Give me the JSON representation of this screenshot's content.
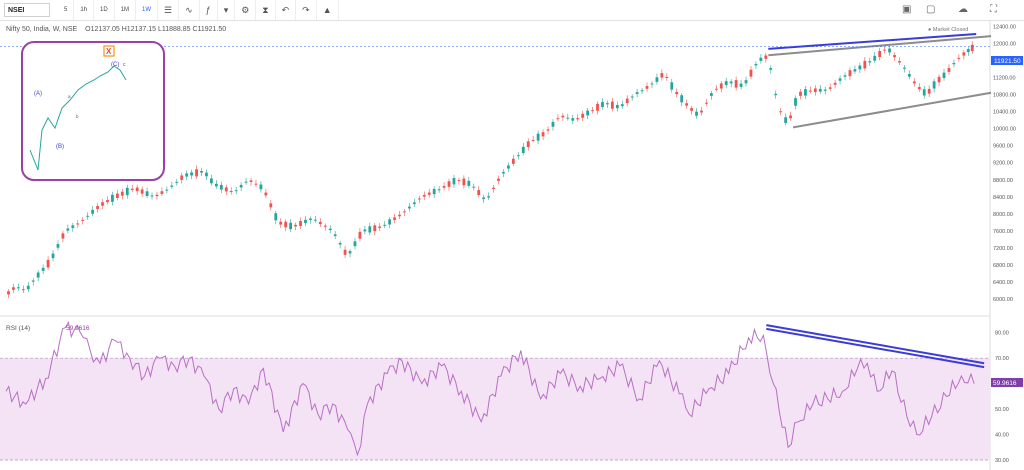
{
  "toolbar": {
    "symbol": "NSEI",
    "intervals": [
      "5",
      "1h",
      "1D",
      "1M",
      "1W"
    ],
    "active_interval": "1W",
    "icons": [
      "bar-style-icon",
      "compare-icon",
      "indicators-icon",
      "dropdown-icon",
      "settings-icon",
      "alert-icon",
      "undo-icon",
      "redo-icon",
      "publish-icon"
    ],
    "right_icons": [
      "camera-icon",
      "layout-icon",
      "cloud-icon",
      "fullscreen-icon"
    ]
  },
  "legend": {
    "title": "Nifty 50, India, W, NSE",
    "ohlc": "O12137.05  H12137.15  L11888.85  C11921.50"
  },
  "market_status": "Market Closed",
  "price_badge": "11921.50",
  "rsi_badge": "59.9616",
  "rsi_legend": {
    "label": "RSI (14)",
    "value": "59.9616"
  },
  "inset_labels": [
    "X",
    "(C)",
    "c",
    "(A)",
    "(B)",
    "a",
    "b"
  ],
  "colors": {
    "up": "#26a69a",
    "down": "#ef5350",
    "trend_blue": "#3b3bd6",
    "trend_gray": "#8c8c8c",
    "rsi_line": "#b86fc4",
    "inset_border": "#9b3fa9",
    "badge": "#2962ff",
    "rsi_badge": "#7e3fa8"
  },
  "chart_data": [
    {
      "type": "candlestick",
      "ylim": [
        5700,
        12500
      ],
      "y_ticks": [
        12400,
        12000,
        11600,
        11200,
        10800,
        10400,
        10000,
        9600,
        9200,
        8800,
        8400,
        8000,
        7600,
        7200,
        6800,
        6400,
        6000
      ],
      "x": [
        0,
        10,
        20,
        30,
        45,
        60,
        75,
        95,
        110,
        130,
        150,
        165,
        180,
        200,
        210,
        230,
        245,
        260,
        275,
        290,
        310,
        330,
        345,
        360,
        380,
        400,
        420,
        440,
        455,
        470,
        485,
        500,
        515,
        530,
        545,
        560,
        575,
        590,
        605,
        620,
        635,
        650,
        665,
        675,
        690,
        700,
        715,
        730,
        745,
        760,
        770,
        780,
        790,
        800,
        815,
        830,
        845,
        860,
        875,
        890,
        905,
        920,
        930,
        940,
        950,
        960,
        970,
        978
      ],
      "close": [
        6100,
        6300,
        6200,
        6500,
        6900,
        7600,
        7800,
        8200,
        8400,
        8600,
        8400,
        8600,
        8900,
        9000,
        8700,
        8500,
        8800,
        8600,
        7800,
        7700,
        7900,
        7600,
        7000,
        7600,
        7700,
        8000,
        8400,
        8600,
        8800,
        8700,
        8300,
        8900,
        9300,
        9700,
        9900,
        10300,
        10200,
        10400,
        10600,
        10500,
        10800,
        11000,
        11300,
        10900,
        10500,
        10300,
        10900,
        11100,
        11000,
        11600,
        11700,
        10500,
        10100,
        10800,
        10900,
        10900,
        11200,
        11400,
        11600,
        11900,
        11500,
        11000,
        10800,
        11100,
        11300,
        11600,
        11800,
        11921.5
      ],
      "trendlines": [
        {
          "color": "#3b3bd6",
          "from": [
            770,
            11870
          ],
          "to": [
            980,
            12220
          ]
        },
        {
          "color": "#8c8c8c",
          "from": [
            770,
            11720
          ],
          "to": [
            995,
            12170
          ]
        },
        {
          "color": "#8c8c8c",
          "from": [
            795,
            10030
          ],
          "to": [
            995,
            10840
          ]
        }
      ]
    },
    {
      "type": "line",
      "title": "RSI (14)",
      "ylim": [
        30,
        85
      ],
      "y_ticks": [
        80,
        70,
        60,
        50,
        40,
        30
      ],
      "band": [
        30,
        70
      ],
      "x": [
        0,
        20,
        40,
        60,
        75,
        85,
        95,
        110,
        125,
        140,
        155,
        170,
        185,
        200,
        215,
        230,
        245,
        260,
        280,
        300,
        315,
        330,
        345,
        355,
        365,
        385,
        400,
        420,
        440,
        460,
        480,
        500,
        520,
        540,
        560,
        580,
        600,
        620,
        640,
        660,
        680,
        690,
        710,
        730,
        750,
        765,
        775,
        790,
        800,
        815,
        830,
        845,
        860,
        870,
        880,
        895,
        910,
        920,
        935,
        950,
        965,
        978
      ],
      "values": [
        57,
        52,
        62,
        82,
        80,
        73,
        68,
        77,
        70,
        63,
        70,
        67,
        70,
        63,
        50,
        58,
        52,
        66,
        41,
        60,
        48,
        52,
        42,
        32,
        52,
        64,
        69,
        60,
        67,
        57,
        45,
        63,
        73,
        54,
        64,
        59,
        62,
        67,
        54,
        69,
        56,
        48,
        58,
        64,
        78,
        79,
        60,
        35,
        45,
        52,
        54,
        57,
        66,
        68,
        57,
        65,
        47,
        40,
        47,
        55,
        63,
        59.96
      ],
      "trendlines": [
        {
          "color": "#3b3bd6",
          "from": [
            768,
            83
          ],
          "to": [
            988,
            68
          ]
        },
        {
          "color": "#3b3bd6",
          "from": [
            768,
            81.5
          ],
          "to": [
            988,
            66.5
          ]
        }
      ]
    }
  ]
}
